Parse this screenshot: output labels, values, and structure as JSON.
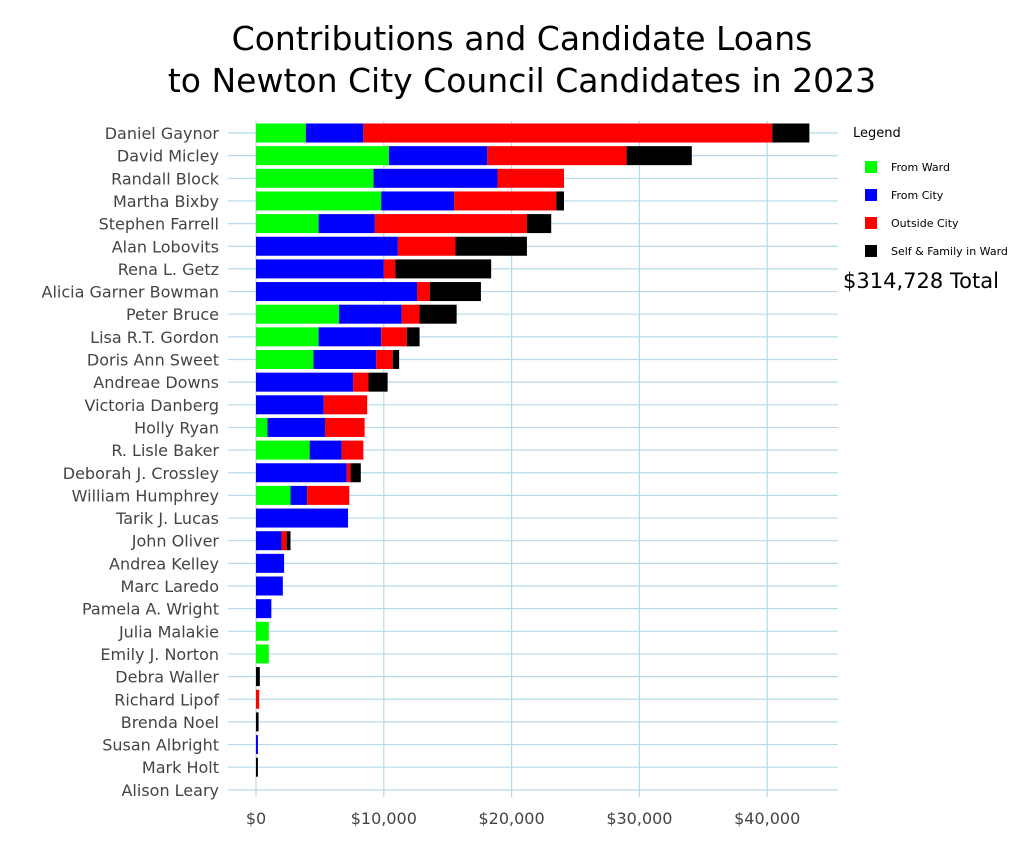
{
  "title_line1": "Contributions and Candidate Loans",
  "title_line2": "to Newton City Council Candidates in 2023",
  "total_label": "$314,728 Total",
  "legend": {
    "title": "Legend",
    "items": [
      {
        "label": "From Ward",
        "color": "#00ff00"
      },
      {
        "label": "From City",
        "color": "#0000ff"
      },
      {
        "label": "Outside City",
        "color": "#ff0000"
      },
      {
        "label": "Self & Family in Ward",
        "color": "#000000"
      }
    ]
  },
  "chart_data": {
    "type": "bar",
    "orientation": "horizontal",
    "stacked": true,
    "title": "Contributions and Candidate Loans to Newton City Council Candidates in 2023",
    "xlim": [
      0,
      45000
    ],
    "x_ticks": [
      0,
      10000,
      20000,
      30000,
      40000
    ],
    "x_tick_labels": [
      "$0",
      "$10,000",
      "$20,000",
      "$30,000",
      "$40,000"
    ],
    "grid": true,
    "legend_position": "right",
    "categories": [
      "Daniel Gaynor",
      "David Micley",
      "Randall Block",
      "Martha Bixby",
      "Stephen Farrell",
      "Alan Lobovits",
      "Rena L. Getz",
      "Alicia Garner Bowman",
      "Peter Bruce",
      "Lisa R.T. Gordon",
      "Doris Ann Sweet",
      "Andreae Downs",
      "Victoria Danberg",
      "Holly Ryan",
      "R. Lisle Baker",
      "Deborah J. Crossley",
      "William Humphrey",
      "Tarik J. Lucas",
      "John Oliver",
      "Andrea Kelley",
      "Marc Laredo",
      "Pamela A. Wright",
      "Julia Malakie",
      "Emily J. Norton",
      "Debra Waller",
      "Richard Lipof",
      "Brenda Noel",
      "Susan Albright",
      "Mark Holt",
      "Alison Leary"
    ],
    "series": [
      {
        "name": "From Ward",
        "color": "#00ff00",
        "values": [
          3900,
          10400,
          9200,
          9800,
          4900,
          0,
          0,
          0,
          6500,
          4900,
          4500,
          0,
          0,
          900,
          4200,
          0,
          2700,
          0,
          0,
          0,
          0,
          0,
          1000,
          1000,
          0,
          0,
          0,
          0,
          0,
          0
        ]
      },
      {
        "name": "From City",
        "color": "#0000ff",
        "values": [
          4500,
          7700,
          9700,
          5700,
          4400,
          11100,
          10000,
          12600,
          4900,
          4900,
          4900,
          7600,
          5300,
          4500,
          2500,
          7100,
          1300,
          7200,
          2000,
          2200,
          2100,
          1200,
          0,
          0,
          0,
          0,
          0,
          150,
          0,
          0
        ]
      },
      {
        "name": "Outside City",
        "color": "#ff0000",
        "values": [
          32000,
          10900,
          5200,
          8000,
          11900,
          4500,
          900,
          1000,
          1400,
          2000,
          1300,
          1200,
          3400,
          3100,
          1700,
          300,
          3300,
          0,
          400,
          0,
          0,
          0,
          0,
          0,
          0,
          250,
          0,
          0,
          0,
          0
        ]
      },
      {
        "name": "Self & Family in Ward",
        "color": "#000000",
        "values": [
          2900,
          5100,
          0,
          600,
          1900,
          5600,
          7500,
          4000,
          2900,
          1000,
          500,
          1500,
          0,
          0,
          0,
          800,
          0,
          0,
          300,
          0,
          0,
          0,
          0,
          0,
          300,
          0,
          200,
          0,
          150,
          0
        ]
      }
    ]
  }
}
